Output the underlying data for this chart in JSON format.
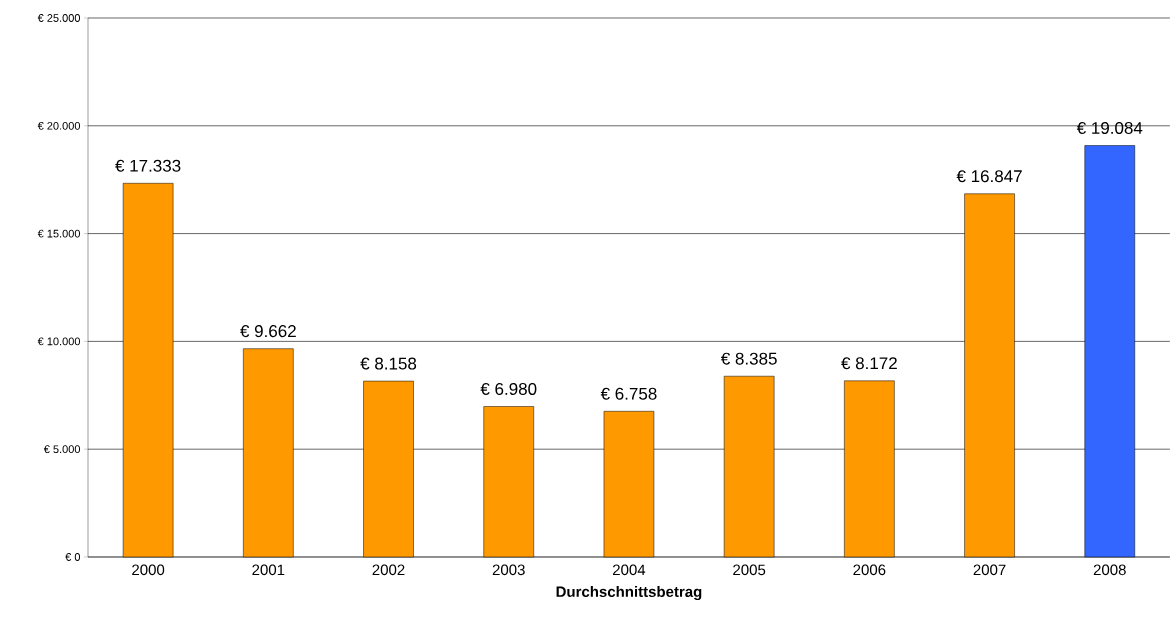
{
  "chart_data": {
    "type": "bar",
    "xlabel": "Durchschnittsbetrag",
    "categories": [
      "2000",
      "2001",
      "2002",
      "2003",
      "2004",
      "2005",
      "2006",
      "2007",
      "2008"
    ],
    "values": [
      17333,
      9662,
      8158,
      6980,
      6758,
      8385,
      8172,
      16847,
      19084
    ],
    "value_labels": [
      "€ 17.333",
      "€ 9.662",
      "€ 8.158",
      "€ 6.980",
      "€ 6.758",
      "€ 8.385",
      "€ 8.172",
      "€ 16.847",
      "€ 19.084"
    ],
    "colors": [
      "#ff9900",
      "#ff9900",
      "#ff9900",
      "#ff9900",
      "#ff9900",
      "#ff9900",
      "#ff9900",
      "#ff9900",
      "#3366ff"
    ],
    "ylim": [
      0,
      25000
    ],
    "yticks": [
      {
        "value": 0,
        "label": "€ 0"
      },
      {
        "value": 5000,
        "label": "€ 5.000"
      },
      {
        "value": 10000,
        "label": "€ 10.000"
      },
      {
        "value": 15000,
        "label": "€ 15.000"
      },
      {
        "value": 20000,
        "label": "€ 20.000"
      },
      {
        "value": 25000,
        "label": "€ 25.000"
      }
    ],
    "grid": "y"
  }
}
